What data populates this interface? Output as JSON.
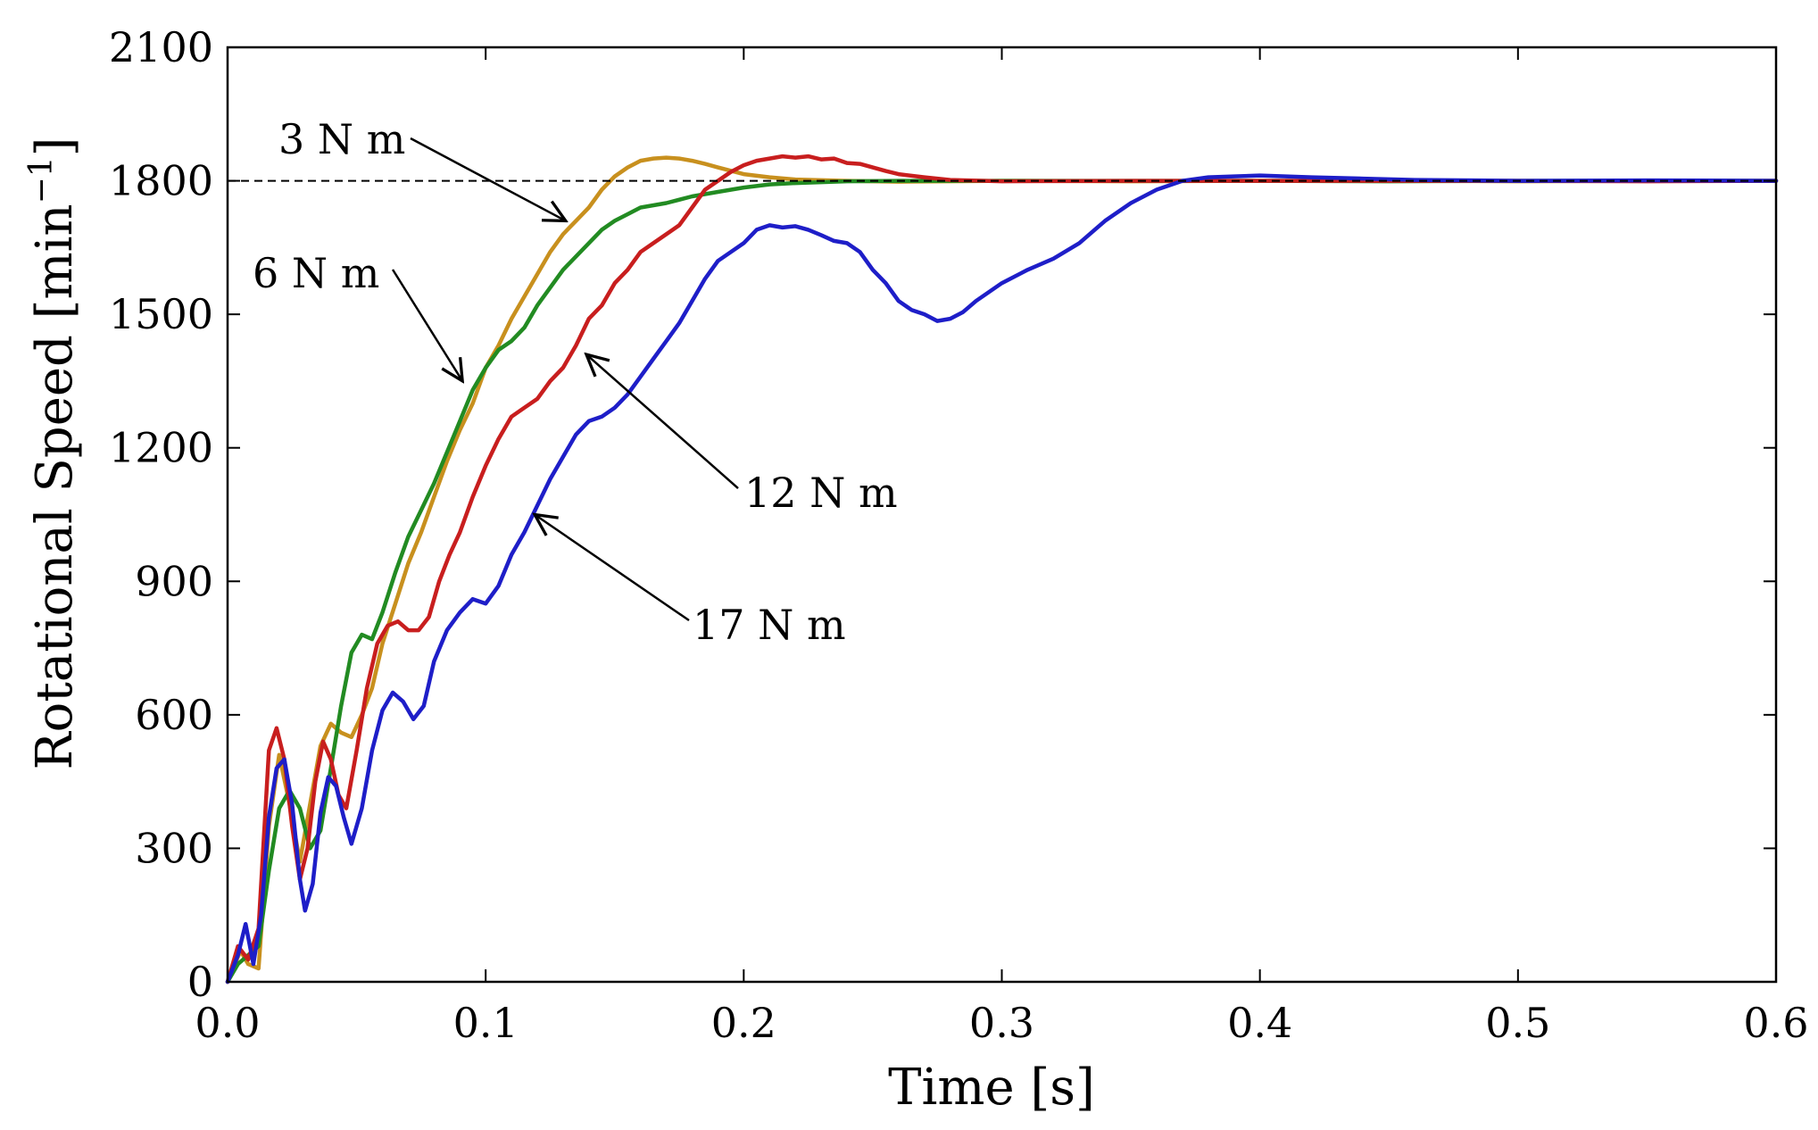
{
  "chart_data": {
    "type": "line",
    "title": "",
    "xlabel": "Time [s]",
    "ylabel": "Rotational Speed [min",
    "ylabel_superscript": "−1",
    "ylabel_close": "]",
    "xlim": [
      0.0,
      0.6
    ],
    "ylim": [
      0,
      2100
    ],
    "xticks": [
      0.0,
      0.1,
      0.2,
      0.3,
      0.4,
      0.5,
      0.6
    ],
    "xtick_labels": [
      "0.0",
      "0.1",
      "0.2",
      "0.3",
      "0.4",
      "0.5",
      "0.6"
    ],
    "yticks": [
      0,
      300,
      600,
      900,
      1200,
      1500,
      1800,
      2100
    ],
    "ytick_labels": [
      "0",
      "300",
      "600",
      "900",
      "1200",
      "1500",
      "1800",
      "2100"
    ],
    "reference_line": {
      "y": 1800,
      "style": "dashed",
      "color": "#000000"
    },
    "grid": false,
    "series": [
      {
        "name": "3 N m",
        "color": "#c8901e",
        "points": [
          [
            0,
            0
          ],
          [
            0.005,
            70
          ],
          [
            0.008,
            40
          ],
          [
            0.012,
            30
          ],
          [
            0.016,
            350
          ],
          [
            0.02,
            510
          ],
          [
            0.024,
            400
          ],
          [
            0.028,
            270
          ],
          [
            0.032,
            400
          ],
          [
            0.036,
            530
          ],
          [
            0.04,
            580
          ],
          [
            0.044,
            560
          ],
          [
            0.048,
            550
          ],
          [
            0.052,
            600
          ],
          [
            0.056,
            660
          ],
          [
            0.06,
            760
          ],
          [
            0.065,
            850
          ],
          [
            0.07,
            940
          ],
          [
            0.075,
            1010
          ],
          [
            0.08,
            1090
          ],
          [
            0.085,
            1170
          ],
          [
            0.09,
            1240
          ],
          [
            0.095,
            1300
          ],
          [
            0.1,
            1380
          ],
          [
            0.105,
            1430
          ],
          [
            0.11,
            1490
          ],
          [
            0.115,
            1540
          ],
          [
            0.12,
            1590
          ],
          [
            0.125,
            1640
          ],
          [
            0.13,
            1680
          ],
          [
            0.135,
            1710
          ],
          [
            0.14,
            1740
          ],
          [
            0.145,
            1780
          ],
          [
            0.15,
            1810
          ],
          [
            0.155,
            1830
          ],
          [
            0.16,
            1845
          ],
          [
            0.165,
            1850
          ],
          [
            0.17,
            1852
          ],
          [
            0.175,
            1850
          ],
          [
            0.18,
            1845
          ],
          [
            0.185,
            1838
          ],
          [
            0.19,
            1830
          ],
          [
            0.2,
            1815
          ],
          [
            0.21,
            1808
          ],
          [
            0.22,
            1803
          ],
          [
            0.24,
            1800
          ],
          [
            0.26,
            1798
          ],
          [
            0.3,
            1800
          ],
          [
            0.35,
            1799
          ],
          [
            0.4,
            1800
          ],
          [
            0.45,
            1800
          ],
          [
            0.5,
            1799
          ],
          [
            0.55,
            1800
          ],
          [
            0.6,
            1800
          ]
        ]
      },
      {
        "name": "6 N m",
        "color": "#228b22",
        "points": [
          [
            0,
            0
          ],
          [
            0.004,
            40
          ],
          [
            0.008,
            60
          ],
          [
            0.012,
            80
          ],
          [
            0.016,
            250
          ],
          [
            0.02,
            390
          ],
          [
            0.024,
            430
          ],
          [
            0.028,
            390
          ],
          [
            0.032,
            300
          ],
          [
            0.036,
            340
          ],
          [
            0.04,
            480
          ],
          [
            0.044,
            620
          ],
          [
            0.048,
            740
          ],
          [
            0.052,
            780
          ],
          [
            0.056,
            770
          ],
          [
            0.06,
            830
          ],
          [
            0.065,
            920
          ],
          [
            0.07,
            1000
          ],
          [
            0.075,
            1060
          ],
          [
            0.08,
            1120
          ],
          [
            0.085,
            1190
          ],
          [
            0.09,
            1260
          ],
          [
            0.095,
            1330
          ],
          [
            0.1,
            1380
          ],
          [
            0.105,
            1420
          ],
          [
            0.11,
            1440
          ],
          [
            0.115,
            1470
          ],
          [
            0.12,
            1520
          ],
          [
            0.125,
            1560
          ],
          [
            0.13,
            1600
          ],
          [
            0.135,
            1630
          ],
          [
            0.14,
            1660
          ],
          [
            0.145,
            1690
          ],
          [
            0.15,
            1710
          ],
          [
            0.155,
            1725
          ],
          [
            0.16,
            1740
          ],
          [
            0.17,
            1750
          ],
          [
            0.18,
            1765
          ],
          [
            0.19,
            1775
          ],
          [
            0.2,
            1785
          ],
          [
            0.21,
            1792
          ],
          [
            0.22,
            1795
          ],
          [
            0.24,
            1799
          ],
          [
            0.26,
            1800
          ],
          [
            0.3,
            1800
          ],
          [
            0.35,
            1800
          ],
          [
            0.4,
            1800
          ],
          [
            0.45,
            1799
          ],
          [
            0.5,
            1800
          ],
          [
            0.55,
            1800
          ],
          [
            0.6,
            1800
          ]
        ]
      },
      {
        "name": "12 N m",
        "color": "#c81e1e",
        "points": [
          [
            0,
            0
          ],
          [
            0.004,
            80
          ],
          [
            0.008,
            50
          ],
          [
            0.012,
            120
          ],
          [
            0.016,
            520
          ],
          [
            0.019,
            570
          ],
          [
            0.022,
            500
          ],
          [
            0.025,
            350
          ],
          [
            0.028,
            230
          ],
          [
            0.031,
            300
          ],
          [
            0.034,
            450
          ],
          [
            0.037,
            540
          ],
          [
            0.04,
            500
          ],
          [
            0.043,
            420
          ],
          [
            0.046,
            390
          ],
          [
            0.05,
            520
          ],
          [
            0.054,
            660
          ],
          [
            0.058,
            760
          ],
          [
            0.062,
            800
          ],
          [
            0.066,
            810
          ],
          [
            0.07,
            790
          ],
          [
            0.074,
            790
          ],
          [
            0.078,
            820
          ],
          [
            0.082,
            900
          ],
          [
            0.086,
            960
          ],
          [
            0.09,
            1010
          ],
          [
            0.095,
            1090
          ],
          [
            0.1,
            1160
          ],
          [
            0.105,
            1220
          ],
          [
            0.11,
            1270
          ],
          [
            0.115,
            1290
          ],
          [
            0.12,
            1310
          ],
          [
            0.125,
            1350
          ],
          [
            0.13,
            1380
          ],
          [
            0.135,
            1430
          ],
          [
            0.14,
            1490
          ],
          [
            0.145,
            1520
          ],
          [
            0.15,
            1570
          ],
          [
            0.155,
            1600
          ],
          [
            0.16,
            1640
          ],
          [
            0.165,
            1660
          ],
          [
            0.17,
            1680
          ],
          [
            0.175,
            1700
          ],
          [
            0.18,
            1740
          ],
          [
            0.185,
            1780
          ],
          [
            0.19,
            1800
          ],
          [
            0.195,
            1820
          ],
          [
            0.2,
            1835
          ],
          [
            0.205,
            1845
          ],
          [
            0.21,
            1850
          ],
          [
            0.215,
            1855
          ],
          [
            0.22,
            1852
          ],
          [
            0.225,
            1855
          ],
          [
            0.23,
            1848
          ],
          [
            0.235,
            1850
          ],
          [
            0.24,
            1840
          ],
          [
            0.245,
            1838
          ],
          [
            0.25,
            1830
          ],
          [
            0.255,
            1822
          ],
          [
            0.26,
            1815
          ],
          [
            0.27,
            1808
          ],
          [
            0.28,
            1802
          ],
          [
            0.3,
            1799
          ],
          [
            0.35,
            1800
          ],
          [
            0.4,
            1800
          ],
          [
            0.45,
            1800
          ],
          [
            0.5,
            1800
          ],
          [
            0.55,
            1799
          ],
          [
            0.6,
            1800
          ]
        ]
      },
      {
        "name": "17 N m",
        "color": "#1e1ec8",
        "points": [
          [
            0,
            0
          ],
          [
            0.004,
            60
          ],
          [
            0.007,
            130
          ],
          [
            0.01,
            40
          ],
          [
            0.013,
            150
          ],
          [
            0.016,
            370
          ],
          [
            0.019,
            480
          ],
          [
            0.022,
            500
          ],
          [
            0.025,
            400
          ],
          [
            0.028,
            230
          ],
          [
            0.03,
            160
          ],
          [
            0.033,
            220
          ],
          [
            0.036,
            380
          ],
          [
            0.039,
            460
          ],
          [
            0.042,
            440
          ],
          [
            0.045,
            370
          ],
          [
            0.048,
            310
          ],
          [
            0.052,
            390
          ],
          [
            0.056,
            520
          ],
          [
            0.06,
            610
          ],
          [
            0.064,
            650
          ],
          [
            0.068,
            630
          ],
          [
            0.072,
            590
          ],
          [
            0.076,
            620
          ],
          [
            0.08,
            720
          ],
          [
            0.085,
            790
          ],
          [
            0.09,
            830
          ],
          [
            0.095,
            860
          ],
          [
            0.1,
            850
          ],
          [
            0.105,
            890
          ],
          [
            0.11,
            960
          ],
          [
            0.115,
            1010
          ],
          [
            0.12,
            1070
          ],
          [
            0.125,
            1130
          ],
          [
            0.13,
            1180
          ],
          [
            0.135,
            1230
          ],
          [
            0.14,
            1260
          ],
          [
            0.145,
            1270
          ],
          [
            0.15,
            1290
          ],
          [
            0.155,
            1320
          ],
          [
            0.16,
            1360
          ],
          [
            0.165,
            1400
          ],
          [
            0.17,
            1440
          ],
          [
            0.175,
            1480
          ],
          [
            0.18,
            1530
          ],
          [
            0.185,
            1580
          ],
          [
            0.19,
            1620
          ],
          [
            0.195,
            1640
          ],
          [
            0.2,
            1660
          ],
          [
            0.205,
            1690
          ],
          [
            0.21,
            1700
          ],
          [
            0.215,
            1695
          ],
          [
            0.22,
            1698
          ],
          [
            0.225,
            1690
          ],
          [
            0.23,
            1678
          ],
          [
            0.235,
            1665
          ],
          [
            0.24,
            1660
          ],
          [
            0.245,
            1640
          ],
          [
            0.25,
            1600
          ],
          [
            0.255,
            1570
          ],
          [
            0.26,
            1530
          ],
          [
            0.265,
            1510
          ],
          [
            0.27,
            1500
          ],
          [
            0.275,
            1485
          ],
          [
            0.28,
            1490
          ],
          [
            0.285,
            1505
          ],
          [
            0.29,
            1530
          ],
          [
            0.3,
            1570
          ],
          [
            0.31,
            1600
          ],
          [
            0.32,
            1625
          ],
          [
            0.33,
            1660
          ],
          [
            0.34,
            1710
          ],
          [
            0.35,
            1750
          ],
          [
            0.36,
            1780
          ],
          [
            0.37,
            1800
          ],
          [
            0.38,
            1808
          ],
          [
            0.39,
            1810
          ],
          [
            0.4,
            1812
          ],
          [
            0.42,
            1808
          ],
          [
            0.44,
            1805
          ],
          [
            0.46,
            1802
          ],
          [
            0.5,
            1800
          ],
          [
            0.55,
            1801
          ],
          [
            0.6,
            1800
          ]
        ]
      }
    ],
    "annotations": [
      {
        "text": "3 N m",
        "series": "3 N m",
        "target": [
          0.131,
          1710
        ]
      },
      {
        "text": "6 N m",
        "series": "6 N m",
        "target": [
          0.091,
          1350
        ]
      },
      {
        "text": "12 N m",
        "series": "12 N m",
        "target": [
          0.139,
          1410
        ]
      },
      {
        "text": "17 N m",
        "series": "17 N m",
        "target": [
          0.119,
          1050
        ]
      }
    ]
  }
}
